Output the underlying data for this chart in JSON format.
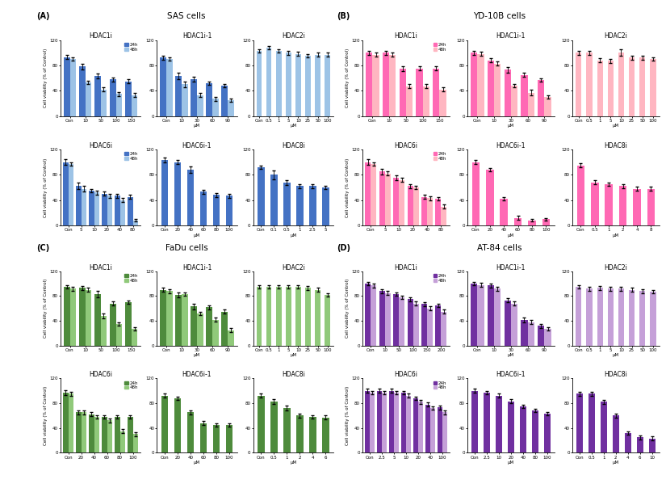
{
  "panels": {
    "A": {
      "title": "SAS cells",
      "label": "(A)",
      "color_dark": "#4472C4",
      "color_light": "#9DC3E6",
      "subplots": [
        {
          "title": "HDAC1i",
          "xticks": [
            "Con",
            "10",
            "50",
            "100",
            "150"
          ],
          "xlabel": "",
          "show_legend": true,
          "bars_24h": [
            93,
            78,
            63,
            58,
            55
          ],
          "bars_48h": [
            90,
            53,
            42,
            35,
            33
          ],
          "err_24h": [
            3,
            4,
            4,
            3,
            3
          ],
          "err_48h": [
            3,
            3,
            3,
            3,
            3
          ],
          "ylim": [
            0,
            120
          ]
        },
        {
          "title": "HDAC1i-1",
          "xticks": [
            "Con",
            "10",
            "30",
            "60",
            "90"
          ],
          "xlabel": "μM",
          "show_legend": false,
          "bars_24h": [
            92,
            63,
            58,
            52,
            48
          ],
          "bars_48h": [
            90,
            50,
            33,
            27,
            25
          ],
          "err_24h": [
            3,
            5,
            4,
            3,
            3
          ],
          "err_48h": [
            3,
            4,
            3,
            3,
            3
          ],
          "ylim": [
            0,
            120
          ]
        },
        {
          "title": "HDAC2i",
          "xticks": [
            "Con",
            "0.5",
            "1",
            "5",
            "10",
            "25",
            "50",
            "100"
          ],
          "xlabel": "μM",
          "show_legend": false,
          "bars_24h": [
            103,
            108,
            103,
            100,
            98,
            95,
            97,
            97
          ],
          "bars_48h": null,
          "err_24h": [
            3,
            3,
            3,
            3,
            3,
            3,
            3,
            3
          ],
          "err_48h": null,
          "ylim": [
            0,
            120
          ],
          "single_color": "#9DC3E6"
        },
        {
          "title": "HDAC6i",
          "xticks": [
            "Con",
            "5",
            "10",
            "20",
            "40",
            "80"
          ],
          "xlabel": "",
          "show_legend": true,
          "bars_24h": [
            100,
            63,
            55,
            50,
            47,
            45
          ],
          "bars_48h": [
            97,
            58,
            52,
            47,
            40,
            8
          ],
          "err_24h": [
            4,
            5,
            3,
            3,
            3,
            3
          ],
          "err_48h": [
            3,
            4,
            3,
            3,
            3,
            2
          ],
          "ylim": [
            0,
            120
          ]
        },
        {
          "title": "HDAC6i-1",
          "xticks": [
            "Con",
            "20",
            "40",
            "60",
            "80",
            "100"
          ],
          "xlabel": "μM",
          "show_legend": false,
          "bars_24h": [
            103,
            100,
            88,
            53,
            48,
            47
          ],
          "bars_48h": null,
          "err_24h": [
            4,
            3,
            5,
            3,
            3,
            3
          ],
          "err_48h": null,
          "ylim": [
            0,
            120
          ]
        },
        {
          "title": "HDAC8i",
          "xticks": [
            "Con",
            "0.1",
            "0.5",
            "1",
            "2.5",
            "5"
          ],
          "xlabel": "μM",
          "show_legend": false,
          "bars_24h": [
            92,
            80,
            68,
            62,
            62,
            60
          ],
          "bars_48h": null,
          "err_24h": [
            3,
            7,
            4,
            3,
            3,
            3
          ],
          "err_48h": null,
          "ylim": [
            0,
            120
          ]
        }
      ]
    },
    "B": {
      "title": "YD-10B cells",
      "label": "(B)",
      "color_dark": "#FF69B4",
      "color_light": "#FFB6C1",
      "subplots": [
        {
          "title": "HDAC1i",
          "xticks": [
            "Con",
            "10",
            "50",
            "100",
            "150"
          ],
          "xlabel": "",
          "show_legend": true,
          "bars_24h": [
            100,
            100,
            75,
            75,
            75
          ],
          "bars_48h": [
            97,
            97,
            47,
            47,
            42
          ],
          "err_24h": [
            3,
            3,
            4,
            3,
            3
          ],
          "err_48h": [
            3,
            3,
            3,
            3,
            3
          ],
          "ylim": [
            0,
            120
          ]
        },
        {
          "title": "HDAC1i-1",
          "xticks": [
            "Con",
            "10",
            "30",
            "60",
            "90"
          ],
          "xlabel": "μM",
          "show_legend": false,
          "bars_24h": [
            100,
            88,
            73,
            65,
            57
          ],
          "bars_48h": [
            98,
            83,
            48,
            37,
            30
          ],
          "err_24h": [
            3,
            3,
            4,
            3,
            3
          ],
          "err_48h": [
            3,
            3,
            3,
            4,
            3
          ],
          "ylim": [
            0,
            120
          ]
        },
        {
          "title": "HDAC2i",
          "xticks": [
            "Con",
            "0.5",
            "1",
            "5",
            "10",
            "25",
            "50",
            "100"
          ],
          "xlabel": "μM",
          "show_legend": false,
          "bars_24h": [
            100,
            100,
            88,
            87,
            100,
            92,
            92,
            90
          ],
          "bars_48h": null,
          "err_24h": [
            3,
            3,
            3,
            3,
            5,
            3,
            3,
            3
          ],
          "err_48h": null,
          "ylim": [
            0,
            120
          ],
          "single_color": "#FFB6C1"
        },
        {
          "title": "HDAC6i",
          "xticks": [
            "Con",
            "5",
            "10",
            "20",
            "40",
            "80"
          ],
          "xlabel": "",
          "show_legend": true,
          "bars_24h": [
            100,
            85,
            75,
            62,
            45,
            42
          ],
          "bars_48h": [
            97,
            82,
            72,
            60,
            43,
            30
          ],
          "err_24h": [
            4,
            4,
            4,
            3,
            3,
            3
          ],
          "err_48h": [
            3,
            3,
            3,
            3,
            3,
            3
          ],
          "ylim": [
            0,
            120
          ]
        },
        {
          "title": "HDAC6i-1",
          "xticks": [
            "Con",
            "20",
            "40",
            "60",
            "80",
            "100"
          ],
          "xlabel": "μM",
          "show_legend": false,
          "bars_24h": [
            100,
            88,
            42,
            12,
            8,
            10
          ],
          "bars_48h": null,
          "err_24h": [
            3,
            3,
            3,
            3,
            2,
            2
          ],
          "err_48h": null,
          "ylim": [
            0,
            120
          ]
        },
        {
          "title": "HDAC8i",
          "xticks": [
            "Con",
            "0.5",
            "1",
            "2",
            "4",
            "8"
          ],
          "xlabel": "μM",
          "show_legend": false,
          "bars_24h": [
            95,
            68,
            65,
            62,
            58,
            58
          ],
          "bars_48h": null,
          "err_24h": [
            3,
            3,
            3,
            3,
            3,
            3
          ],
          "err_48h": null,
          "ylim": [
            0,
            120
          ]
        }
      ]
    },
    "C": {
      "title": "FaDu cells",
      "label": "(C)",
      "color_dark": "#4E8B3C",
      "color_light": "#90C97A",
      "subplots": [
        {
          "title": "HDAC1i",
          "xticks": [
            "Con",
            "10",
            "50",
            "100",
            "150"
          ],
          "xlabel": "",
          "show_legend": true,
          "bars_24h": [
            95,
            93,
            83,
            68,
            70
          ],
          "bars_48h": [
            92,
            90,
            48,
            35,
            27
          ],
          "err_24h": [
            3,
            3,
            5,
            3,
            3
          ],
          "err_48h": [
            3,
            3,
            4,
            3,
            3
          ],
          "ylim": [
            0,
            120
          ]
        },
        {
          "title": "HDAC1i-1",
          "xticks": [
            "Con",
            "10",
            "30",
            "60",
            "90"
          ],
          "xlabel": "μM",
          "show_legend": false,
          "bars_24h": [
            90,
            82,
            63,
            62,
            55
          ],
          "bars_48h": [
            88,
            83,
            52,
            42,
            25
          ],
          "err_24h": [
            3,
            4,
            4,
            3,
            3
          ],
          "err_48h": [
            3,
            3,
            3,
            3,
            3
          ],
          "ylim": [
            0,
            120
          ]
        },
        {
          "title": "HDAC2i",
          "xticks": [
            "Con",
            "0.5",
            "1",
            "5",
            "10",
            "25",
            "50",
            "100"
          ],
          "xlabel": "μM",
          "show_legend": false,
          "bars_24h": [
            95,
            95,
            95,
            95,
            95,
            93,
            90,
            82
          ],
          "bars_48h": null,
          "err_24h": [
            3,
            3,
            3,
            3,
            3,
            3,
            3,
            3
          ],
          "err_48h": null,
          "ylim": [
            0,
            120
          ],
          "single_color": "#90C97A"
        },
        {
          "title": "HDAC6i",
          "xticks": [
            "Con",
            "20",
            "40",
            "60",
            "80",
            "100"
          ],
          "xlabel": "",
          "show_legend": true,
          "bars_24h": [
            97,
            65,
            62,
            58,
            58,
            58
          ],
          "bars_48h": [
            95,
            65,
            58,
            52,
            35,
            30
          ],
          "err_24h": [
            4,
            3,
            3,
            3,
            3,
            3
          ],
          "err_48h": [
            3,
            3,
            3,
            3,
            3,
            3
          ],
          "ylim": [
            0,
            120
          ]
        },
        {
          "title": "HDAC6i-1",
          "xticks": [
            "Con",
            "20",
            "40",
            "60",
            "80",
            "100"
          ],
          "xlabel": "μM",
          "show_legend": false,
          "bars_24h": [
            92,
            88,
            65,
            48,
            45,
            45
          ],
          "bars_48h": null,
          "err_24h": [
            3,
            3,
            3,
            3,
            3,
            3
          ],
          "err_48h": null,
          "ylim": [
            0,
            120
          ]
        },
        {
          "title": "HDAC8i",
          "xticks": [
            "Con",
            "0.5",
            "1",
            "2",
            "4",
            "6"
          ],
          "xlabel": "μM",
          "show_legend": false,
          "bars_24h": [
            92,
            83,
            72,
            60,
            58,
            57
          ],
          "bars_48h": null,
          "err_24h": [
            3,
            4,
            4,
            3,
            3,
            3
          ],
          "err_48h": null,
          "ylim": [
            0,
            120
          ]
        }
      ]
    },
    "D": {
      "title": "AT-84 cells",
      "label": "(D)",
      "color_dark": "#7030A0",
      "color_light": "#C5A0D8",
      "subplots": [
        {
          "title": "HDAC1i",
          "xticks": [
            "Con",
            "10",
            "50",
            "100",
            "150",
            "200"
          ],
          "xlabel": "",
          "show_legend": true,
          "bars_24h": [
            100,
            88,
            83,
            75,
            67,
            65
          ],
          "bars_48h": [
            97,
            85,
            78,
            68,
            60,
            55
          ],
          "err_24h": [
            3,
            3,
            3,
            3,
            3,
            3
          ],
          "err_48h": [
            3,
            3,
            3,
            3,
            3,
            3
          ],
          "ylim": [
            0,
            120
          ]
        },
        {
          "title": "HDAC1i-1",
          "xticks": [
            "Con",
            "10",
            "30",
            "60",
            "90"
          ],
          "xlabel": "μM",
          "show_legend": false,
          "bars_24h": [
            100,
            97,
            73,
            42,
            32
          ],
          "bars_48h": [
            98,
            92,
            68,
            38,
            27
          ],
          "err_24h": [
            3,
            3,
            3,
            4,
            3
          ],
          "err_48h": [
            3,
            3,
            3,
            3,
            3
          ],
          "ylim": [
            0,
            120
          ]
        },
        {
          "title": "HDAC2i",
          "xticks": [
            "Con",
            "0.5",
            "1",
            "5",
            "10",
            "25",
            "50",
            "100"
          ],
          "xlabel": "μM",
          "show_legend": false,
          "bars_24h": [
            95,
            92,
            93,
            92,
            92,
            90,
            88,
            87
          ],
          "bars_48h": null,
          "err_24h": [
            3,
            3,
            3,
            3,
            3,
            3,
            3,
            3
          ],
          "err_48h": null,
          "ylim": [
            0,
            120
          ],
          "single_color": "#C5A0D8"
        },
        {
          "title": "HDAC6i",
          "xticks": [
            "Con",
            "2.5",
            "5",
            "10",
            "20",
            "40",
            "100"
          ],
          "xlabel": "",
          "show_legend": true,
          "bars_24h": [
            100,
            100,
            100,
            97,
            88,
            78,
            73
          ],
          "bars_48h": [
            97,
            97,
            97,
            92,
            82,
            72,
            65
          ],
          "err_24h": [
            3,
            3,
            3,
            3,
            3,
            3,
            3
          ],
          "err_48h": [
            3,
            3,
            3,
            3,
            3,
            3,
            3
          ],
          "ylim": [
            0,
            120
          ]
        },
        {
          "title": "HDAC6i-1",
          "xticks": [
            "Con",
            "2.5",
            "10",
            "20",
            "40",
            "80",
            "100"
          ],
          "xlabel": "μM",
          "show_legend": false,
          "bars_24h": [
            100,
            97,
            92,
            83,
            75,
            68,
            63
          ],
          "bars_48h": null,
          "err_24h": [
            3,
            3,
            3,
            3,
            3,
            3,
            3
          ],
          "err_48h": null,
          "ylim": [
            0,
            120
          ]
        },
        {
          "title": "HDAC8i",
          "xticks": [
            "Con",
            "0.5",
            "1",
            "2",
            "4",
            "6",
            "10"
          ],
          "xlabel": "μM",
          "show_legend": false,
          "bars_24h": [
            95,
            95,
            82,
            60,
            32,
            25,
            23
          ],
          "bars_48h": null,
          "err_24h": [
            3,
            3,
            3,
            3,
            3,
            3,
            3
          ],
          "err_48h": null,
          "ylim": [
            0,
            120
          ]
        }
      ]
    }
  },
  "ylabel": "Cell viability (% of Control)",
  "legend_24h": "24h",
  "legend_48h": "48h",
  "background_color": "#FFFFFF"
}
